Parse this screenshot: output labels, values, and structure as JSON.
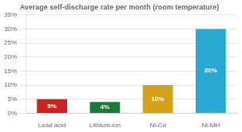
{
  "chart_data": {
    "type": "bar",
    "title": "Average self-discharge rate per month (room temperature)",
    "categories": [
      "Lead acid",
      "Lithium-ion",
      "Ni-Cd",
      "Ni-MH"
    ],
    "values": [
      5,
      4,
      10,
      30
    ],
    "value_labels": [
      "5%",
      "4%",
      "10%",
      "30%"
    ],
    "data_labels": true,
    "colors": [
      "#cc2222",
      "#1e7a3a",
      "#d4a017",
      "#29aad4"
    ],
    "ylim": [
      0,
      35
    ],
    "yticks": [
      {
        "value": 0,
        "label": "0%"
      },
      {
        "value": 5,
        "label": "5%"
      },
      {
        "value": 10,
        "label": "10%"
      },
      {
        "value": 15,
        "label": "15%"
      },
      {
        "value": 20,
        "label": "20%"
      },
      {
        "value": 25,
        "label": "25%"
      },
      {
        "value": 30,
        "label": "30%"
      },
      {
        "value": 35,
        "label": "35%"
      }
    ],
    "grid": true
  }
}
